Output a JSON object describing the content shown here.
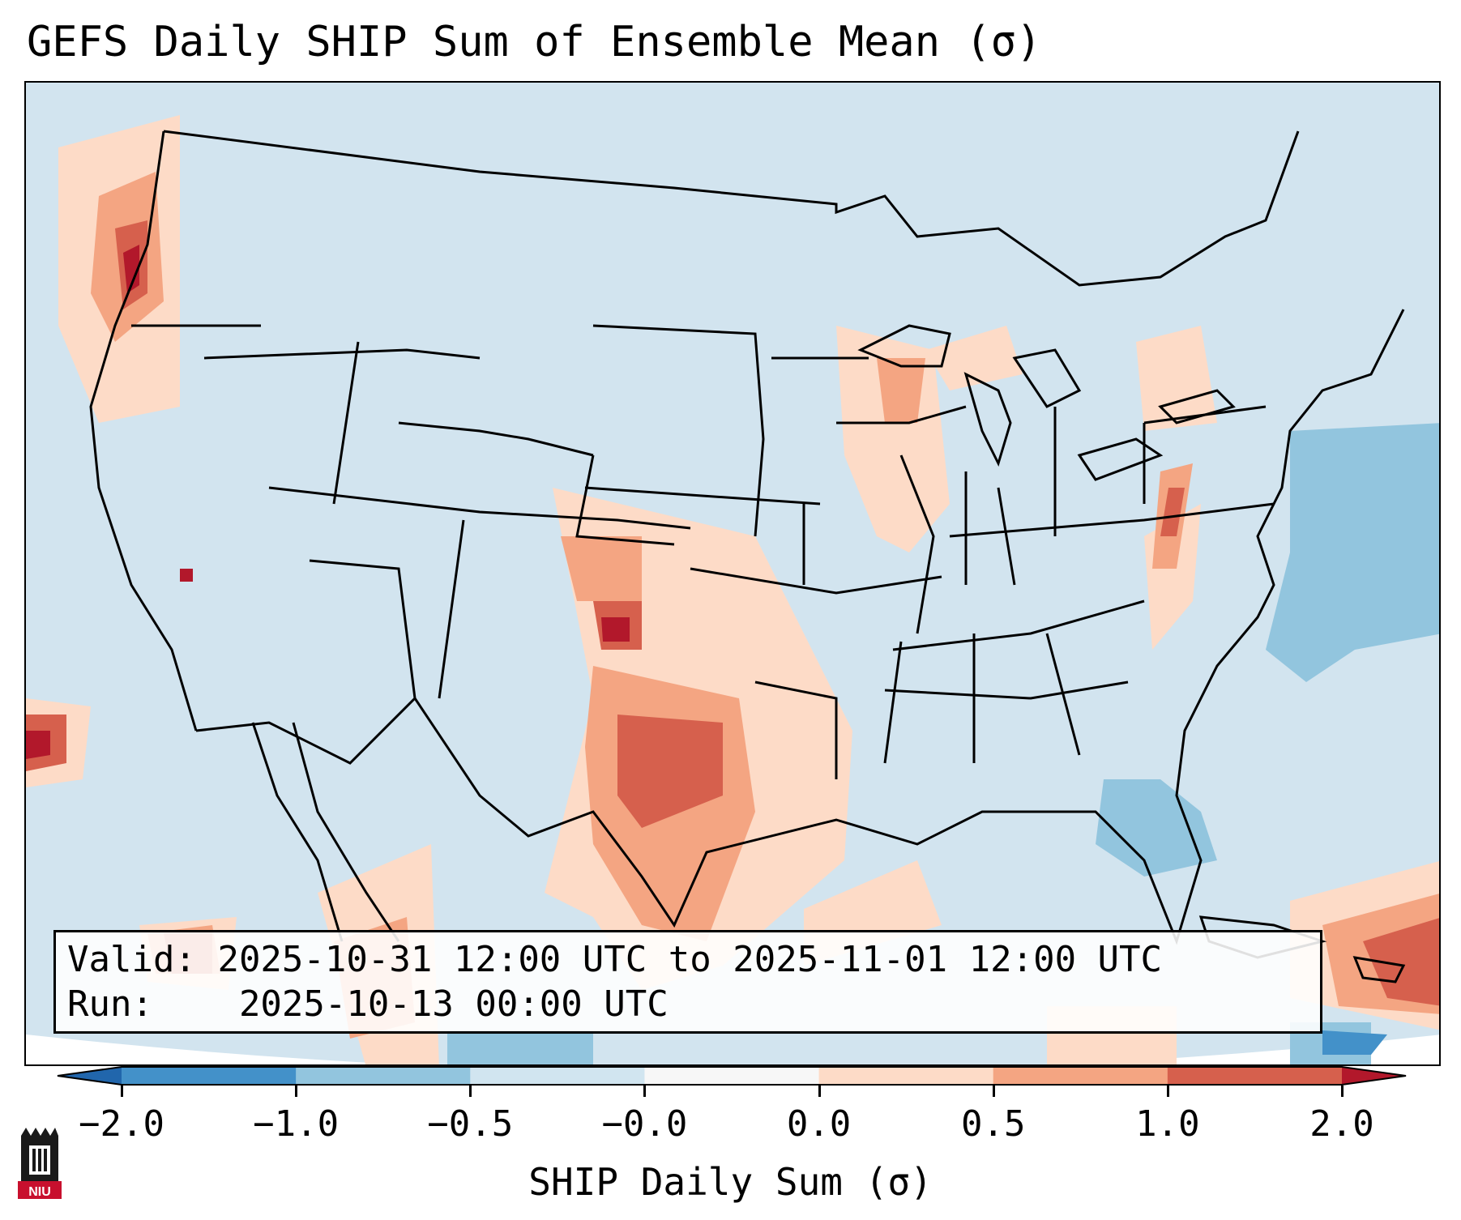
{
  "title": "GEFS Daily SHIP Sum of Ensemble Mean (σ)",
  "info": {
    "valid_label": "Valid:",
    "valid_value": "2025-10-31 12:00 UTC to 2025-11-01 12:00 UTC",
    "run_label": "Run:",
    "run_value": "2025-10-13 00:00 UTC"
  },
  "colorbar": {
    "label": "SHIP Daily Sum (σ)",
    "ticks": [
      "−2.0",
      "−1.0",
      "−0.5",
      "−0.0",
      "0.0",
      "0.5",
      "1.0",
      "2.0"
    ],
    "bins": [
      {
        "color": "#4391c9"
      },
      {
        "color": "#92c5de"
      },
      {
        "color": "#d1e5f0"
      },
      {
        "color": "#f7f7f7"
      },
      {
        "color": "#fddbc7"
      },
      {
        "color": "#f4a582"
      },
      {
        "color": "#d6604d"
      }
    ],
    "under_color": "#2166ac",
    "over_color": "#b2182b"
  },
  "logo": {
    "text": "NIU",
    "name": "niu-logo"
  }
}
